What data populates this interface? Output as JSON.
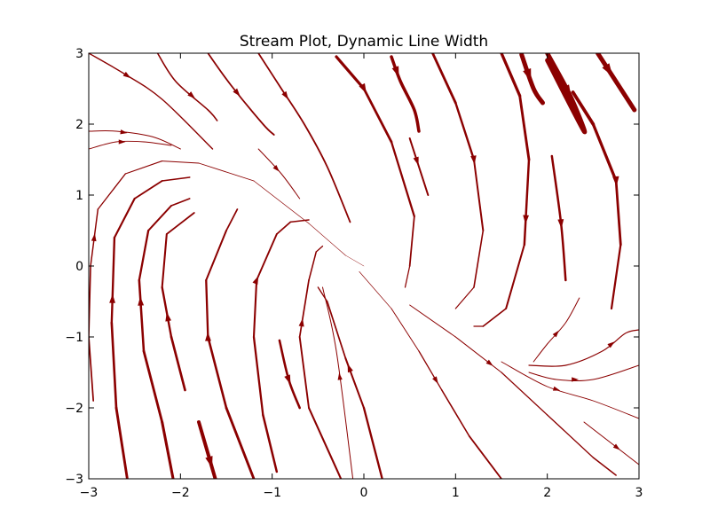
{
  "chart_data": {
    "type": "streamplot",
    "title": "Stream Plot, Dynamic Line Width",
    "xlabel": "",
    "ylabel": "",
    "xlim": [
      -3,
      3
    ],
    "ylim": [
      -3,
      3
    ],
    "grid": false,
    "color": "#8b0000",
    "x_ticks": [
      -3,
      -2,
      -1,
      0,
      1,
      2,
      3
    ],
    "y_ticks": [
      -3,
      -2,
      -1,
      0,
      1,
      2,
      3
    ],
    "x_tick_labels": [
      "−3",
      "−2",
      "−1",
      "0",
      "1",
      "2",
      "3"
    ],
    "y_tick_labels": [
      "−3",
      "−2",
      "−1",
      "0",
      "1",
      "2",
      "3"
    ],
    "streamlines": [
      {
        "points": [
          [
            -3.0,
            3.0
          ],
          [
            -2.6,
            2.7
          ],
          [
            -2.2,
            2.35
          ],
          [
            -1.65,
            1.65
          ]
        ],
        "width": 1.4,
        "arrow_at": 0.35
      },
      {
        "points": [
          [
            -2.25,
            3.0
          ],
          [
            -2.05,
            2.6
          ],
          [
            -1.7,
            2.2
          ],
          [
            -1.6,
            2.05
          ]
        ],
        "width": 1.6,
        "arrow_at": 0.5
      },
      {
        "points": [
          [
            -1.7,
            3.0
          ],
          [
            -1.45,
            2.55
          ],
          [
            -1.1,
            2.0
          ],
          [
            -0.98,
            1.85
          ]
        ],
        "width": 1.8,
        "arrow_at": 0.4
      },
      {
        "points": [
          [
            -1.15,
            3.0
          ],
          [
            -0.9,
            2.5
          ],
          [
            -0.65,
            2.0
          ],
          [
            -0.4,
            1.4
          ],
          [
            -0.15,
            0.62
          ]
        ],
        "width": 1.8,
        "arrow_at": 0.3
      },
      {
        "points": [
          [
            -1.15,
            1.65
          ],
          [
            -0.9,
            1.3
          ],
          [
            -0.7,
            0.95
          ]
        ],
        "width": 1.0,
        "arrow_at": 0.4
      },
      {
        "points": [
          [
            -3.0,
            1.9
          ],
          [
            -2.7,
            1.9
          ],
          [
            -2.3,
            1.82
          ],
          [
            -2.0,
            1.65
          ]
        ],
        "width": 1.0,
        "arrow_at": 0.4
      },
      {
        "points": [
          [
            -3.0,
            1.65
          ],
          [
            -2.7,
            1.75
          ],
          [
            -2.4,
            1.75
          ],
          [
            -2.1,
            1.7
          ]
        ],
        "width": 0.9,
        "arrow_at": 0.4
      },
      {
        "points": [
          [
            -2.95,
            -1.9
          ],
          [
            -3.0,
            -1.0
          ],
          [
            -2.98,
            0.0
          ],
          [
            -2.9,
            0.8
          ],
          [
            -2.6,
            1.3
          ],
          [
            -2.2,
            1.48
          ],
          [
            -1.8,
            1.45
          ],
          [
            -1.2,
            1.2
          ],
          [
            -0.6,
            0.6
          ],
          [
            -0.2,
            0.15
          ],
          [
            0.0,
            0.0
          ]
        ],
        "width": 1.8,
        "width_end": 0.4,
        "arrow_at": 0.25
      },
      {
        "points": [
          [
            -2.58,
            -3.0
          ],
          [
            -2.7,
            -2.0
          ],
          [
            -2.75,
            -0.8
          ],
          [
            -2.72,
            0.4
          ],
          [
            -2.5,
            0.95
          ],
          [
            -2.2,
            1.2
          ],
          [
            -1.9,
            1.25
          ]
        ],
        "width": 3.0,
        "width_end": 1.5,
        "arrow_at": 0.38
      },
      {
        "points": [
          [
            -1.95,
            -1.75
          ],
          [
            -2.1,
            -1.0
          ],
          [
            -2.2,
            -0.3
          ],
          [
            -2.15,
            0.45
          ],
          [
            -1.85,
            0.75
          ]
        ],
        "width": 2.8,
        "width_end": 1.6,
        "arrow_at": 0.35
      },
      {
        "points": [
          [
            -2.08,
            -3.0
          ],
          [
            -2.2,
            -2.2
          ],
          [
            -2.4,
            -1.2
          ],
          [
            -2.45,
            -0.2
          ],
          [
            -2.35,
            0.5
          ],
          [
            -2.1,
            0.85
          ],
          [
            -1.9,
            0.95
          ]
        ],
        "width": 3.2,
        "width_end": 1.6,
        "arrow_at": 0.45
      },
      {
        "points": [
          [
            -1.8,
            -2.2
          ],
          [
            -1.62,
            -3.0
          ]
        ],
        "width": 4.0,
        "arrow_at": 0.7
      },
      {
        "points": [
          [
            -1.2,
            -3.0
          ],
          [
            -1.5,
            -2.0
          ],
          [
            -1.7,
            -1.0
          ],
          [
            -1.72,
            -0.2
          ],
          [
            -1.5,
            0.5
          ],
          [
            -1.38,
            0.8
          ]
        ],
        "width": 3.0,
        "width_end": 1.6,
        "arrow_at": 0.4
      },
      {
        "points": [
          [
            -0.95,
            -2.9
          ],
          [
            -1.1,
            -2.1
          ],
          [
            -1.2,
            -1.0
          ],
          [
            -1.17,
            -0.2
          ],
          [
            -0.95,
            0.45
          ],
          [
            -0.8,
            0.62
          ],
          [
            -0.6,
            0.65
          ]
        ],
        "width": 2.6,
        "width_end": 1.4,
        "arrow_at": 0.5
      },
      {
        "points": [
          [
            -0.92,
            -1.05
          ],
          [
            -0.82,
            -1.6
          ],
          [
            -0.7,
            -2.0
          ]
        ],
        "width": 2.6,
        "arrow_at": 0.5
      },
      {
        "points": [
          [
            -0.25,
            -3.0
          ],
          [
            -0.6,
            -2.0
          ],
          [
            -0.7,
            -1.0
          ],
          [
            -0.6,
            -0.2
          ],
          [
            -0.52,
            0.2
          ],
          [
            -0.45,
            0.28
          ]
        ],
        "width": 2.2,
        "width_end": 1.2,
        "arrow_at": 0.45
      },
      {
        "points": [
          [
            -0.12,
            -3.0
          ],
          [
            -0.3,
            -1.2
          ],
          [
            -0.45,
            -0.3
          ]
        ],
        "width": 1.0,
        "arrow_at": 0.4
      },
      {
        "points": [
          [
            0.2,
            -3.0
          ],
          [
            0.0,
            -2.0
          ],
          [
            -0.2,
            -1.3
          ],
          [
            -0.4,
            -0.5
          ],
          [
            -0.5,
            -0.3
          ]
        ],
        "width": 2.5,
        "width_end": 1.2,
        "arrow_at": 0.45
      },
      {
        "points": [
          [
            -0.05,
            -0.08
          ],
          [
            0.3,
            -0.6
          ],
          [
            0.6,
            -1.2
          ],
          [
            0.85,
            -1.75
          ],
          [
            1.15,
            -2.4
          ],
          [
            1.5,
            -3.0
          ]
        ],
        "width": 0.5,
        "width_end": 2.0,
        "arrow_at": 0.55
      },
      {
        "points": [
          [
            -0.3,
            2.95
          ],
          [
            0.0,
            2.5
          ],
          [
            0.3,
            1.75
          ],
          [
            0.55,
            0.7
          ],
          [
            0.5,
            0.0
          ],
          [
            0.45,
            -0.3
          ]
        ],
        "width": 3.5,
        "width_end": 1.0,
        "arrow_at": 0.2
      },
      {
        "points": [
          [
            0.3,
            2.95
          ],
          [
            0.4,
            2.6
          ],
          [
            0.55,
            2.2
          ],
          [
            0.6,
            1.9
          ]
        ],
        "width": 3.5,
        "arrow_at": 0.2
      },
      {
        "points": [
          [
            0.75,
            3.0
          ],
          [
            1.0,
            2.3
          ],
          [
            1.2,
            1.5
          ],
          [
            1.3,
            0.5
          ],
          [
            1.2,
            -0.3
          ],
          [
            1.0,
            -0.6
          ]
        ],
        "width": 3.0,
        "width_end": 1.0,
        "arrow_at": 0.4
      },
      {
        "points": [
          [
            0.5,
            1.8
          ],
          [
            0.6,
            1.4
          ],
          [
            0.7,
            1.0
          ]
        ],
        "width": 2.0,
        "arrow_at": 0.4
      },
      {
        "points": [
          [
            1.5,
            3.0
          ],
          [
            1.7,
            2.4
          ],
          [
            1.8,
            1.5
          ],
          [
            1.75,
            0.3
          ],
          [
            1.55,
            -0.6
          ],
          [
            1.3,
            -0.85
          ],
          [
            1.2,
            -0.85
          ]
        ],
        "width": 3.5,
        "width_end": 1.0,
        "arrow_at": 0.45
      },
      {
        "points": [
          [
            1.72,
            2.98
          ],
          [
            1.85,
            2.5
          ],
          [
            1.95,
            2.3
          ]
        ],
        "width": 5.0,
        "arrow_at": 0.3
      },
      {
        "points": [
          [
            2.0,
            3.0
          ],
          [
            2.25,
            2.4
          ],
          [
            2.4,
            1.9
          ],
          [
            2.0,
            2.9
          ]
        ],
        "width": 5.0,
        "arrow_at": 0.3
      },
      {
        "points": [
          [
            2.28,
            2.45
          ],
          [
            2.5,
            2.0
          ],
          [
            2.75,
            1.2
          ],
          [
            2.8,
            0.3
          ],
          [
            2.7,
            -0.6
          ]
        ],
        "width": 4.0,
        "width_end": 2.0,
        "arrow_at": 0.5
      },
      {
        "points": [
          [
            2.55,
            3.0
          ],
          [
            2.95,
            2.2
          ]
        ],
        "width": 5.0,
        "arrow_at": 0.3
      },
      {
        "points": [
          [
            2.05,
            1.55
          ],
          [
            2.15,
            0.6
          ],
          [
            2.2,
            -0.2
          ]
        ],
        "width": 2.5,
        "arrow_at": 0.5
      },
      {
        "points": [
          [
            1.85,
            -1.35
          ],
          [
            2.0,
            -1.1
          ],
          [
            2.2,
            -0.8
          ],
          [
            2.35,
            -0.45
          ]
        ],
        "width": 1.0,
        "arrow_at": 0.5
      },
      {
        "points": [
          [
            1.8,
            -1.4
          ],
          [
            2.2,
            -1.4
          ],
          [
            2.6,
            -1.2
          ],
          [
            2.85,
            -0.95
          ],
          [
            3.0,
            -0.9
          ]
        ],
        "width": 1.2,
        "arrow_at": 0.6
      },
      {
        "points": [
          [
            1.8,
            -1.5
          ],
          [
            2.1,
            -1.6
          ],
          [
            2.5,
            -1.6
          ],
          [
            3.0,
            -1.4
          ]
        ],
        "width": 1.0,
        "arrow_at": 0.5
      },
      {
        "points": [
          [
            1.5,
            -1.35
          ],
          [
            2.0,
            -1.7
          ],
          [
            2.5,
            -1.9
          ],
          [
            3.0,
            -2.15
          ]
        ],
        "width": 0.9,
        "arrow_at": 0.4
      },
      {
        "points": [
          [
            0.5,
            -0.55
          ],
          [
            1.0,
            -1.0
          ],
          [
            1.5,
            -1.5
          ],
          [
            2.0,
            -2.1
          ],
          [
            2.5,
            -2.7
          ],
          [
            2.75,
            -2.95
          ]
        ],
        "width": 0.9,
        "width_end": 1.5,
        "arrow_at": 0.35
      },
      {
        "points": [
          [
            2.4,
            -2.2
          ],
          [
            2.7,
            -2.5
          ],
          [
            3.0,
            -2.8
          ]
        ],
        "width": 1.0,
        "arrow_at": 0.6
      }
    ]
  }
}
